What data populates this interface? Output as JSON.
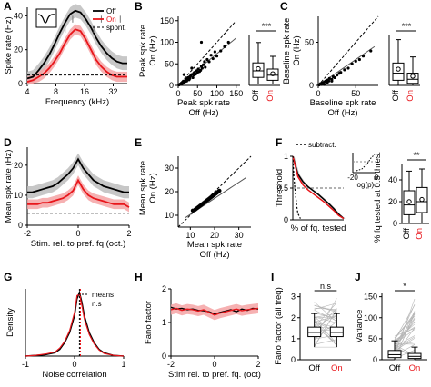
{
  "colors": {
    "off": "#000000",
    "on": "#e8161b",
    "on_band": "#f4a3a5",
    "off_band": "#bdbdbd",
    "spont": "#000000",
    "box_off": "#ffffff"
  },
  "chart_data": [
    {
      "panel": "A",
      "type": "line",
      "xlabel": "Frequency (kHz)",
      "ylabel": "Spike rate (Hz)",
      "xticks": [
        "4",
        "8",
        "16",
        "32"
      ],
      "yticks": [
        "0",
        "20",
        "40"
      ],
      "xlim": [
        4,
        45
      ],
      "ylim": [
        0,
        45
      ],
      "xscale": "log",
      "legend": [
        "Off",
        "On",
        "spont."
      ],
      "legend_position": "top-right",
      "inset_icon": "waveform-icon",
      "series": [
        {
          "name": "Off",
          "x": [
            4,
            4.6,
            5.3,
            6,
            6.8,
            7.7,
            8.8,
            10,
            11.3,
            12.8,
            14.5,
            16.5,
            18.7,
            21.2,
            24,
            27.3,
            31,
            35,
            40,
            45
          ],
          "values": [
            3,
            4,
            8,
            12,
            17,
            23,
            30,
            36,
            41,
            43,
            42,
            38,
            33,
            27,
            22,
            18,
            15,
            13,
            12,
            12
          ]
        },
        {
          "name": "On",
          "x": [
            4,
            4.6,
            5.3,
            6,
            6.8,
            7.7,
            8.8,
            10,
            11.3,
            12.8,
            14.5,
            16.5,
            18.7,
            21.2,
            24,
            27.3,
            31,
            35,
            40,
            45
          ],
          "values": [
            1,
            2,
            4,
            6,
            9,
            13,
            18,
            24,
            29,
            32,
            31,
            26,
            20,
            14,
            10,
            7,
            5,
            4,
            4,
            4
          ]
        },
        {
          "name": "spont.",
          "x": [
            4,
            45
          ],
          "values": [
            5,
            5
          ]
        }
      ]
    },
    {
      "panel": "B",
      "type": "scatter",
      "xlabel": "Peak spk rate\nOff (Hz)",
      "ylabel": "Peak spk rate\nOn (Hz)",
      "xticks": [
        "0",
        "50",
        "100",
        "150"
      ],
      "yticks": [
        "0",
        "50",
        "100",
        "150"
      ],
      "xlim": [
        0,
        160
      ],
      "ylim": [
        0,
        160
      ],
      "points_x": [
        2,
        5,
        8,
        10,
        12,
        14,
        15,
        18,
        20,
        20,
        22,
        25,
        25,
        28,
        30,
        30,
        32,
        35,
        38,
        40,
        40,
        42,
        45,
        48,
        50,
        52,
        55,
        58,
        60,
        62,
        65,
        68,
        70,
        75,
        80,
        85,
        90,
        95,
        100,
        110,
        120,
        130,
        15,
        35,
        60
      ],
      "points_y": [
        1,
        3,
        5,
        4,
        8,
        6,
        10,
        9,
        12,
        15,
        10,
        14,
        18,
        13,
        20,
        16,
        22,
        25,
        18,
        28,
        24,
        30,
        26,
        34,
        30,
        38,
        32,
        35,
        45,
        40,
        48,
        55,
        42,
        60,
        55,
        70,
        62,
        78,
        68,
        80,
        90,
        100,
        25,
        40,
        100
      ],
      "box": {
        "categories": [
          "Off",
          "On"
        ],
        "median": [
          40,
          28
        ],
        "q1": [
          22,
          14
        ],
        "q3": [
          62,
          45
        ],
        "whisker_low": [
          5,
          3
        ],
        "whisker_high": [
          118,
          80
        ],
        "mean": [
          46,
          32
        ]
      },
      "significance": "***"
    },
    {
      "panel": "C",
      "type": "scatter",
      "xlabel": "Baseline spk rate\nOff (Hz)",
      "ylabel": "Baseline spk rate\nOn (Hz)",
      "xticks": [
        "0",
        "50"
      ],
      "yticks": [
        "0",
        "50"
      ],
      "xlim": [
        0,
        80
      ],
      "ylim": [
        0,
        80
      ],
      "points_x": [
        1,
        2,
        3,
        4,
        5,
        6,
        8,
        10,
        12,
        14,
        15,
        18,
        20,
        22,
        25,
        28,
        30,
        35,
        40,
        45,
        50,
        55,
        60,
        70,
        8,
        12,
        18
      ],
      "points_y": [
        0.5,
        1,
        2,
        1,
        3,
        2,
        4,
        5,
        6,
        5,
        8,
        7,
        10,
        9,
        12,
        14,
        15,
        18,
        20,
        25,
        28,
        30,
        34,
        40,
        1,
        3,
        5
      ],
      "box": {
        "categories": [
          "Off",
          "On"
        ],
        "median": [
          12,
          6
        ],
        "q1": [
          5,
          2
        ],
        "q3": [
          22,
          12
        ],
        "whisker_low": [
          0,
          0
        ],
        "whisker_high": [
          45,
          28
        ],
        "mean": [
          16,
          9
        ]
      },
      "significance": "***"
    },
    {
      "panel": "D",
      "type": "line",
      "xlabel": "Stim. rel. to pref. fq (oct.)",
      "ylabel": "Mean spk rate (Hz)",
      "xticks": [
        "-2",
        "0",
        "2"
      ],
      "yticks": [
        "0",
        "10",
        "20"
      ],
      "xlim": [
        -2,
        2
      ],
      "ylim": [
        0,
        26
      ],
      "series": [
        {
          "name": "Off",
          "x": [
            -2,
            -1.8,
            -1.6,
            -1.4,
            -1.2,
            -1,
            -0.8,
            -0.6,
            -0.4,
            -0.2,
            0,
            0.2,
            0.4,
            0.6,
            0.8,
            1,
            1.2,
            1.4,
            1.6,
            1.8,
            2
          ],
          "values": [
            11,
            11,
            11.5,
            12,
            12.5,
            13,
            14,
            15.5,
            17,
            19,
            22,
            19,
            17,
            15,
            14,
            13,
            12.5,
            12,
            11.5,
            11,
            11
          ]
        },
        {
          "name": "On",
          "x": [
            -2,
            -1.8,
            -1.6,
            -1.4,
            -1.2,
            -1,
            -0.8,
            -0.6,
            -0.4,
            -0.2,
            0,
            0.2,
            0.4,
            0.6,
            0.8,
            1,
            1.2,
            1.4,
            1.6,
            1.8,
            2
          ],
          "values": [
            7,
            7,
            7,
            7.5,
            7.5,
            8,
            8.5,
            9,
            10,
            11.5,
            15,
            12,
            10,
            9,
            8.5,
            8,
            7.5,
            7,
            7,
            7,
            6
          ]
        },
        {
          "name": "spont.",
          "x": [
            -2,
            2
          ],
          "values": [
            4,
            4
          ]
        }
      ]
    },
    {
      "panel": "E",
      "type": "scatter",
      "xlabel": "Mean spk rate\nOff (Hz)",
      "ylabel": "Mean spk rate\nOn (Hz)",
      "xticks": [
        "10",
        "20",
        "30"
      ],
      "yticks": [
        "10",
        "20",
        "30"
      ],
      "xlim": [
        5,
        35
      ],
      "ylim": [
        5,
        35
      ],
      "points_x": [
        11,
        12,
        12.5,
        13,
        13.5,
        14,
        14.5,
        15,
        15.5,
        16,
        16.5,
        17,
        17.5,
        18,
        18.5,
        19,
        19.5,
        20,
        20.5,
        21,
        21.5,
        22
      ],
      "points_y": [
        12,
        12.4,
        12.8,
        13.2,
        13.6,
        14,
        14.4,
        14.8,
        15.2,
        15.6,
        16,
        16.4,
        16.8,
        17.2,
        17.6,
        18,
        18.4,
        18.8,
        19.2,
        19.6,
        20,
        20.4
      ]
    },
    {
      "panel": "F",
      "type": "line",
      "xlabel": "% of fq. tested",
      "ylabel": "Threshold",
      "yticks": [
        "0",
        "0.5",
        "1"
      ],
      "legend": [
        "subtract."
      ],
      "legend_position": "top-left",
      "inset": {
        "xlabel": "log(p)",
        "xticks": [
          "-20",
          "0"
        ]
      },
      "series": [
        {
          "name": "Off",
          "x": [
            0,
            10,
            20,
            30,
            40,
            50,
            60,
            70,
            80,
            90,
            100
          ],
          "values": [
            1,
            0.72,
            0.6,
            0.52,
            0.46,
            0.4,
            0.33,
            0.26,
            0.18,
            0.09,
            0.02
          ]
        },
        {
          "name": "On",
          "x": [
            0,
            10,
            20,
            30,
            40,
            50,
            60,
            70,
            80,
            90,
            100
          ],
          "values": [
            1,
            0.68,
            0.55,
            0.47,
            0.41,
            0.35,
            0.29,
            0.22,
            0.15,
            0.07,
            0.02
          ]
        },
        {
          "name": "subtract.",
          "x": [
            0,
            2,
            4,
            6,
            8,
            10,
            15
          ],
          "values": [
            1,
            0.7,
            0.5,
            0.35,
            0.2,
            0.1,
            0.02
          ]
        }
      ],
      "box": {
        "ylabel": "% fq tested at 0.5 thres.",
        "categories": [
          "Off",
          "On"
        ],
        "yticks": [
          "0",
          "20",
          "40"
        ],
        "ylim": [
          0,
          55
        ],
        "median": [
          17,
          20
        ],
        "q1": [
          8,
          10
        ],
        "q3": [
          30,
          33
        ],
        "whisker_low": [
          0,
          0
        ],
        "whisker_high": [
          48,
          50
        ],
        "mean": [
          20,
          22
        ]
      },
      "significance": "**"
    },
    {
      "panel": "G",
      "type": "line",
      "xlabel": "Noise correlation",
      "ylabel": "Density",
      "xticks": [
        "-1",
        "0",
        "1"
      ],
      "legend": [
        "means",
        "n.s"
      ],
      "legend_position": "top-right",
      "series": [
        {
          "name": "Off",
          "x": [
            -1,
            -0.8,
            -0.6,
            -0.4,
            -0.3,
            -0.2,
            -0.1,
            0,
            0.05,
            0.1,
            0.15,
            0.2,
            0.3,
            0.4,
            0.5,
            0.6,
            0.8,
            1
          ],
          "values": [
            0,
            0.01,
            0.02,
            0.05,
            0.1,
            0.2,
            0.35,
            0.6,
            0.85,
            0.95,
            0.8,
            0.6,
            0.35,
            0.2,
            0.1,
            0.05,
            0.01,
            0
          ]
        },
        {
          "name": "On",
          "x": [
            -1,
            -0.8,
            -0.6,
            -0.4,
            -0.3,
            -0.2,
            -0.1,
            0,
            0.05,
            0.1,
            0.15,
            0.2,
            0.3,
            0.4,
            0.5,
            0.6,
            0.8,
            1
          ],
          "values": [
            0,
            0.01,
            0.03,
            0.06,
            0.12,
            0.22,
            0.38,
            0.65,
            0.9,
            0.92,
            0.75,
            0.55,
            0.32,
            0.18,
            0.09,
            0.04,
            0.01,
            0
          ]
        }
      ],
      "means": [
        0.1,
        0.12
      ]
    },
    {
      "panel": "H",
      "type": "line",
      "xlabel": "Stim rel. to pref. fq. (oct)",
      "ylabel": "Fano factor",
      "xticks": [
        "-2",
        "0",
        "2"
      ],
      "yticks": [
        "0",
        "1",
        "2"
      ],
      "xlim": [
        -2,
        2
      ],
      "ylim": [
        0,
        2
      ],
      "series": [
        {
          "name": "Off",
          "x": [
            -2,
            -1.75,
            -1.5,
            -1.25,
            -1,
            -0.75,
            -0.5,
            -0.25,
            0,
            0.25,
            0.5,
            0.75,
            1,
            1.25,
            1.5,
            1.75,
            2
          ],
          "values": [
            1.45,
            1.4,
            1.42,
            1.38,
            1.4,
            1.36,
            1.35,
            1.32,
            1.25,
            1.3,
            1.34,
            1.38,
            1.32,
            1.4,
            1.36,
            1.42,
            1.4
          ]
        },
        {
          "name": "On",
          "x": [
            -2,
            -1.75,
            -1.5,
            -1.25,
            -1,
            -0.75,
            -0.5,
            -0.25,
            0,
            0.25,
            0.5,
            0.75,
            1,
            1.25,
            1.5,
            1.75,
            2
          ],
          "values": [
            1.38,
            1.42,
            1.36,
            1.4,
            1.38,
            1.34,
            1.38,
            1.3,
            1.22,
            1.28,
            1.32,
            1.36,
            1.4,
            1.35,
            1.38,
            1.4,
            1.42
          ]
        }
      ]
    },
    {
      "panel": "I",
      "type": "box",
      "ylabel": "Fano factor (all freq)",
      "yticks": [
        "0",
        "1",
        "2",
        "3"
      ],
      "ylim": [
        0,
        3.2
      ],
      "categories": [
        "Off",
        "On"
      ],
      "median": [
        1.3,
        1.3
      ],
      "q1": [
        1.1,
        1.1
      ],
      "q3": [
        1.55,
        1.55
      ],
      "whisker_low": [
        0.6,
        0.6
      ],
      "whisker_high": [
        2.2,
        2.2
      ],
      "paired_lines": 30,
      "significance": "n.s"
    },
    {
      "panel": "J",
      "type": "box",
      "ylabel": "Variance",
      "yticks": [
        "0",
        "50",
        "100",
        "150"
      ],
      "ylim": [
        0,
        160
      ],
      "categories": [
        "Off",
        "On"
      ],
      "median": [
        12,
        8
      ],
      "q1": [
        5,
        3
      ],
      "q3": [
        22,
        15
      ],
      "whisker_low": [
        0,
        0
      ],
      "whisker_high": [
        45,
        30
      ],
      "paired_lines": 30,
      "significance": "*"
    }
  ],
  "panel_letters": [
    "A",
    "B",
    "C",
    "D",
    "E",
    "F",
    "G",
    "H",
    "I",
    "J"
  ]
}
